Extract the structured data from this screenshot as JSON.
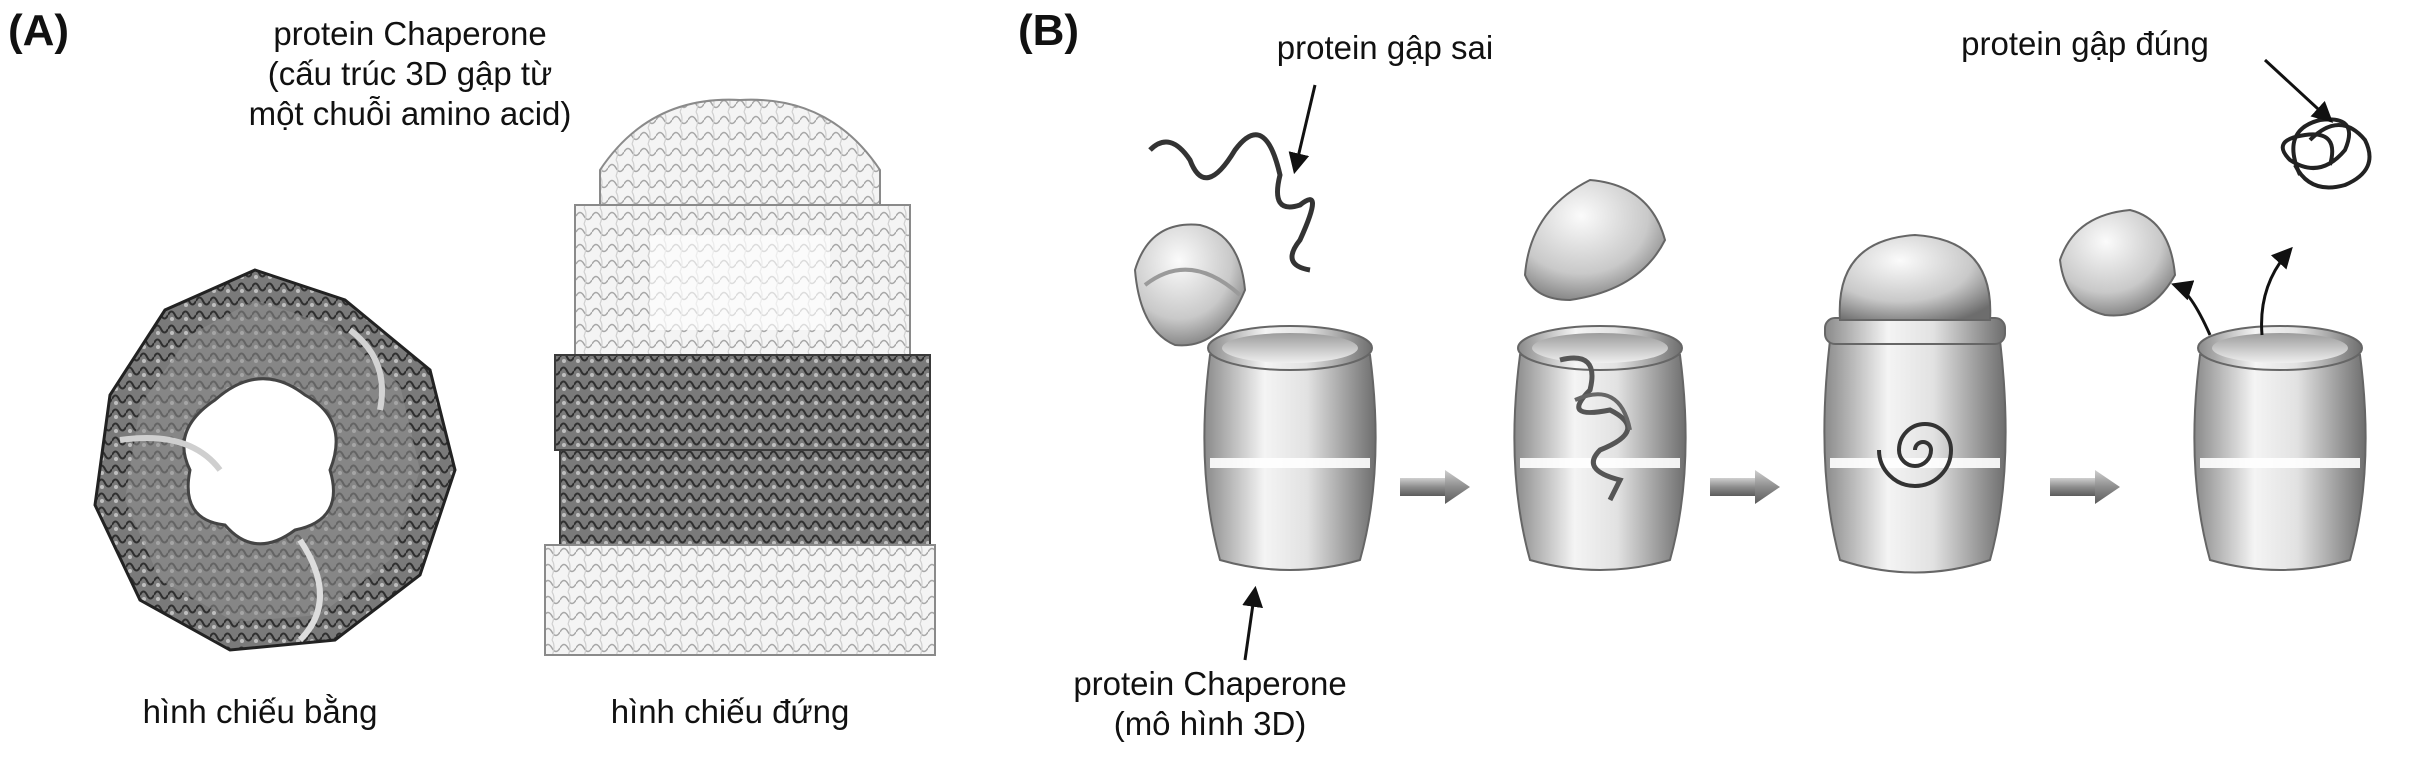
{
  "panel_a": {
    "letter": "(A)",
    "title_lines": [
      "protein Chaperone",
      "(cấu trúc 3D gập từ",
      "một chuỗi amino acid)"
    ],
    "caption_top_view": "hình chiếu bằng",
    "caption_side_view": "hình chiếu đứng"
  },
  "panel_b": {
    "letter": "(B)",
    "misfolded_label": "protein gập sai",
    "folded_label": "protein gập đúng",
    "chaperone_label_lines": [
      "protein Chaperone",
      "(mô hình 3D)"
    ]
  },
  "colors": {
    "text": "#111111",
    "dark_structure": "#4a4a4a",
    "light_structure": "#bdbdbd",
    "barrel_light": "#e9e9e9",
    "barrel_dark": "#7a7a7a"
  },
  "icons": [
    "arrow-right-icon",
    "arrow-pointer-icon"
  ]
}
